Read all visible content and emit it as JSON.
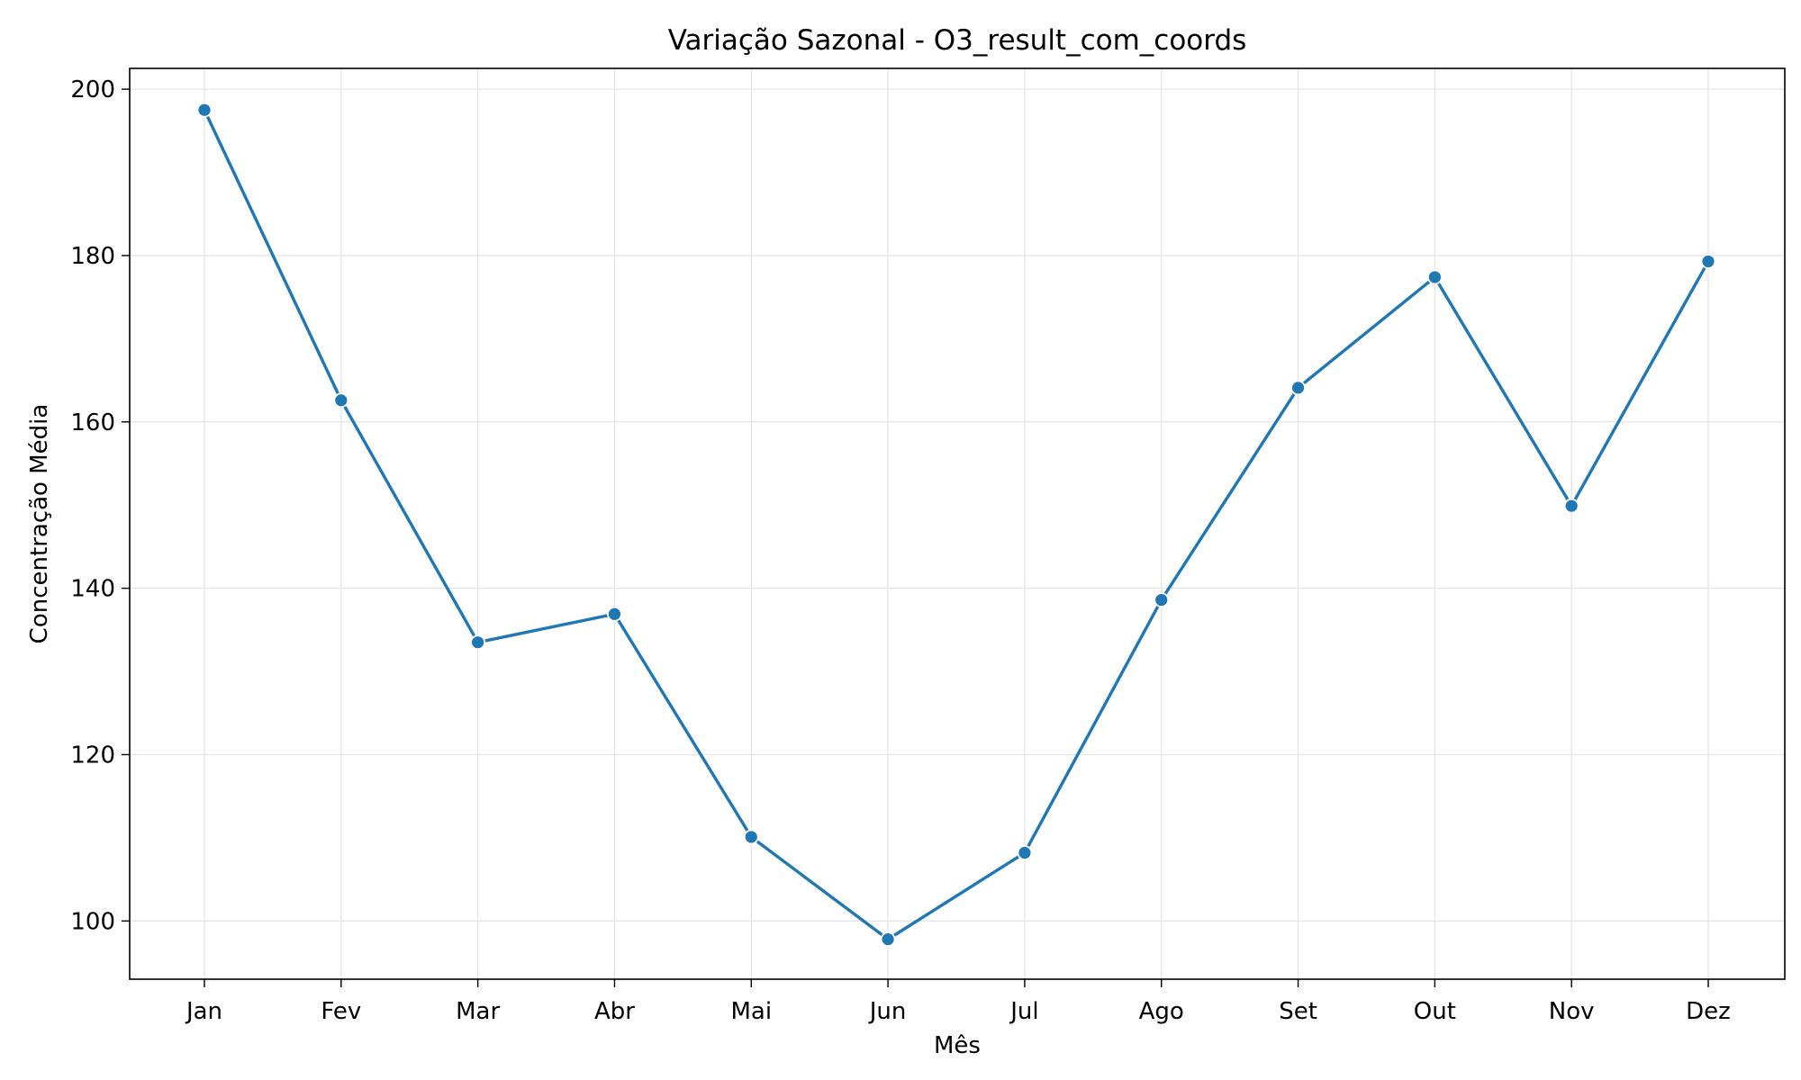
{
  "chart_data": {
    "type": "line",
    "title": "Variação Sazonal - O3_result_com_coords",
    "xlabel": "Mês",
    "ylabel": "Concentração Média",
    "categories": [
      "Jan",
      "Fev",
      "Mar",
      "Abr",
      "Mai",
      "Jun",
      "Jul",
      "Ago",
      "Set",
      "Out",
      "Nov",
      "Dez"
    ],
    "series": [
      {
        "values": [
          197.5,
          162.6,
          133.5,
          136.9,
          110.1,
          97.8,
          108.2,
          138.6,
          164.1,
          177.4,
          149.9,
          179.3
        ]
      }
    ],
    "y_ticks": [
      100,
      120,
      140,
      160,
      180,
      200
    ],
    "ylim": [
      93.0,
      202.5
    ],
    "grid": true,
    "legend": "none",
    "colors": {
      "line": "#1f77b4",
      "marker_edge": "#ffffff",
      "grid": "#e5e5e5",
      "axes": "#000000"
    }
  }
}
